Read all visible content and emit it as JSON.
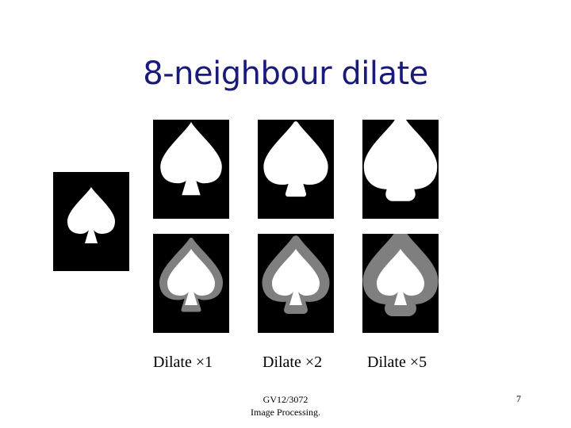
{
  "slide": {
    "title": "8-neighbour dilate",
    "page_number": "7"
  },
  "captions": {
    "dilate_1": "Dilate ×1",
    "dilate_2": "Dilate ×2",
    "dilate_5": "Dilate ×5"
  },
  "footer": {
    "line1": "GV12/3072",
    "line2": "Image Processing."
  },
  "colors": {
    "title": "#1a1a7a",
    "background": "#000000",
    "foreground": "#ffffff",
    "dilated_region": "#7f7f7f"
  }
}
